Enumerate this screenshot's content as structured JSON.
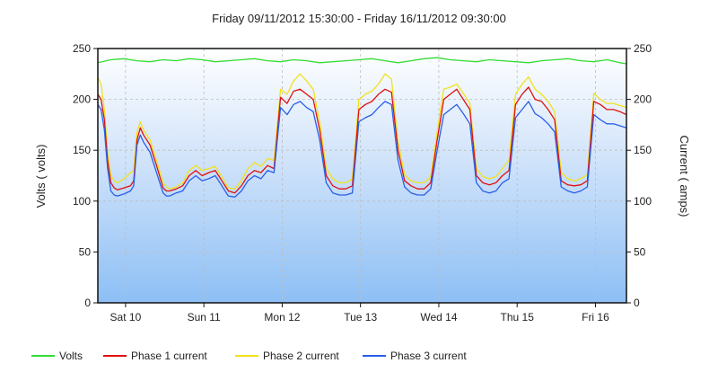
{
  "chart_data": {
    "type": "line",
    "title": "Friday 09/11/2012  15:30:00 - Friday 16/11/2012 09:30:00",
    "ylabel_left": "Volts ( volts)",
    "ylabel_right": "Current ( amps)",
    "ylim_left": [
      0,
      250
    ],
    "ylim_right": [
      0,
      250
    ],
    "yticks": [
      0,
      50,
      100,
      150,
      200,
      250
    ],
    "x_range_hours": [
      0,
      162
    ],
    "xticks": [
      {
        "label": "Sat 10",
        "hour": 8.5
      },
      {
        "label": "Sun 11",
        "hour": 32.5
      },
      {
        "label": "Mon 12",
        "hour": 56.5
      },
      {
        "label": "Tue 13",
        "hour": 80.5
      },
      {
        "label": "Wed 14",
        "hour": 104.5
      },
      {
        "label": "Thu 15",
        "hour": 128.5
      },
      {
        "label": "Fri 16",
        "hour": 152.5
      }
    ],
    "grid": true,
    "legend_position": "bottom",
    "series": [
      {
        "name": "Volts",
        "color": "#33dd33",
        "axis": "left",
        "x": [
          0,
          4,
          8,
          12,
          16,
          20,
          24,
          28,
          32,
          36,
          40,
          44,
          48,
          52,
          56,
          60,
          64,
          68,
          72,
          76,
          80,
          84,
          88,
          92,
          96,
          100,
          104,
          108,
          112,
          116,
          120,
          124,
          128,
          132,
          136,
          140,
          144,
          148,
          152,
          156,
          160,
          162
        ],
        "values": [
          236,
          239,
          240,
          238,
          237,
          239,
          238,
          240,
          239,
          237,
          238,
          239,
          240,
          238,
          237,
          239,
          238,
          236,
          237,
          238,
          239,
          240,
          238,
          236,
          238,
          240,
          241,
          239,
          238,
          237,
          239,
          238,
          237,
          236,
          238,
          239,
          240,
          238,
          237,
          239,
          236,
          235
        ]
      },
      {
        "name": "Phase 1 current",
        "color": "#e01010",
        "axis": "right",
        "x": [
          0,
          1,
          2,
          3,
          4,
          5,
          6,
          8,
          10,
          11,
          12,
          13,
          14,
          16,
          18,
          20,
          21,
          22,
          24,
          26,
          28,
          30,
          32,
          34,
          36,
          38,
          40,
          42,
          44,
          46,
          48,
          50,
          52,
          54,
          56,
          58,
          60,
          62,
          64,
          66,
          68,
          70,
          72,
          74,
          76,
          78,
          80,
          82,
          84,
          86,
          88,
          90,
          92,
          94,
          96,
          98,
          100,
          102,
          104,
          106,
          108,
          110,
          112,
          114,
          116,
          118,
          120,
          122,
          124,
          126,
          128,
          130,
          132,
          134,
          136,
          138,
          140,
          142,
          144,
          146,
          148,
          150,
          152,
          154,
          156,
          158,
          160,
          162
        ],
        "values": [
          205,
          200,
          180,
          140,
          118,
          113,
          111,
          113,
          115,
          120,
          160,
          172,
          165,
          155,
          135,
          113,
          110,
          110,
          112,
          115,
          125,
          130,
          125,
          128,
          130,
          120,
          110,
          108,
          115,
          125,
          130,
          128,
          135,
          132,
          202,
          196,
          208,
          210,
          205,
          200,
          170,
          125,
          115,
          112,
          112,
          115,
          190,
          195,
          198,
          205,
          210,
          207,
          150,
          120,
          115,
          112,
          112,
          118,
          160,
          200,
          205,
          210,
          200,
          190,
          125,
          118,
          116,
          118,
          125,
          130,
          195,
          205,
          212,
          200,
          198,
          190,
          180,
          120,
          116,
          115,
          116,
          120,
          198,
          195,
          190,
          190,
          188,
          185
        ]
      },
      {
        "name": "Phase 2 current",
        "color": "#f2e21a",
        "axis": "right",
        "x": [
          0,
          1,
          2,
          3,
          4,
          5,
          6,
          8,
          10,
          11,
          12,
          13,
          14,
          16,
          18,
          20,
          21,
          22,
          24,
          26,
          28,
          30,
          32,
          34,
          36,
          38,
          40,
          42,
          44,
          46,
          48,
          50,
          52,
          54,
          56,
          58,
          60,
          62,
          64,
          66,
          68,
          70,
          72,
          74,
          76,
          78,
          80,
          82,
          84,
          86,
          88,
          90,
          92,
          94,
          96,
          98,
          100,
          102,
          104,
          106,
          108,
          110,
          112,
          114,
          116,
          118,
          120,
          122,
          124,
          126,
          128,
          130,
          132,
          134,
          136,
          138,
          140,
          142,
          144,
          146,
          148,
          150,
          152,
          154,
          156,
          158,
          160,
          162
        ],
        "values": [
          222,
          215,
          190,
          148,
          125,
          120,
          118,
          122,
          128,
          130,
          168,
          178,
          170,
          160,
          140,
          118,
          114,
          112,
          114,
          118,
          130,
          135,
          130,
          132,
          134,
          124,
          113,
          112,
          120,
          132,
          138,
          134,
          142,
          140,
          210,
          205,
          218,
          225,
          218,
          210,
          178,
          132,
          122,
          118,
          118,
          122,
          200,
          205,
          208,
          215,
          225,
          220,
          158,
          126,
          120,
          118,
          118,
          124,
          168,
          210,
          212,
          215,
          206,
          196,
          132,
          124,
          122,
          124,
          132,
          140,
          205,
          215,
          222,
          210,
          205,
          198,
          188,
          128,
          122,
          120,
          122,
          126,
          206,
          200,
          196,
          196,
          194,
          192
        ]
      },
      {
        "name": "Phase 3 current",
        "color": "#2a5ee8",
        "axis": "right",
        "x": [
          0,
          1,
          2,
          3,
          4,
          5,
          6,
          8,
          10,
          11,
          12,
          13,
          14,
          16,
          18,
          20,
          21,
          22,
          24,
          26,
          28,
          30,
          32,
          34,
          36,
          38,
          40,
          42,
          44,
          46,
          48,
          50,
          52,
          54,
          56,
          58,
          60,
          62,
          64,
          66,
          68,
          70,
          72,
          74,
          76,
          78,
          80,
          82,
          84,
          86,
          88,
          90,
          92,
          94,
          96,
          98,
          100,
          102,
          104,
          106,
          108,
          110,
          112,
          114,
          116,
          118,
          120,
          122,
          124,
          126,
          128,
          130,
          132,
          134,
          136,
          138,
          140,
          142,
          144,
          146,
          148,
          150,
          152,
          154,
          156,
          158,
          160,
          162
        ],
        "values": [
          195,
          190,
          170,
          132,
          110,
          106,
          105,
          107,
          110,
          115,
          155,
          165,
          158,
          148,
          128,
          108,
          105,
          105,
          108,
          110,
          120,
          125,
          120,
          122,
          125,
          115,
          105,
          104,
          110,
          120,
          125,
          122,
          130,
          128,
          192,
          185,
          195,
          198,
          192,
          188,
          160,
          118,
          108,
          106,
          106,
          108,
          178,
          182,
          185,
          192,
          198,
          195,
          140,
          114,
          108,
          106,
          106,
          112,
          150,
          185,
          190,
          195,
          186,
          176,
          118,
          110,
          108,
          110,
          118,
          122,
          182,
          190,
          198,
          186,
          182,
          176,
          168,
          114,
          110,
          108,
          110,
          114,
          185,
          180,
          176,
          176,
          174,
          172
        ]
      }
    ]
  }
}
